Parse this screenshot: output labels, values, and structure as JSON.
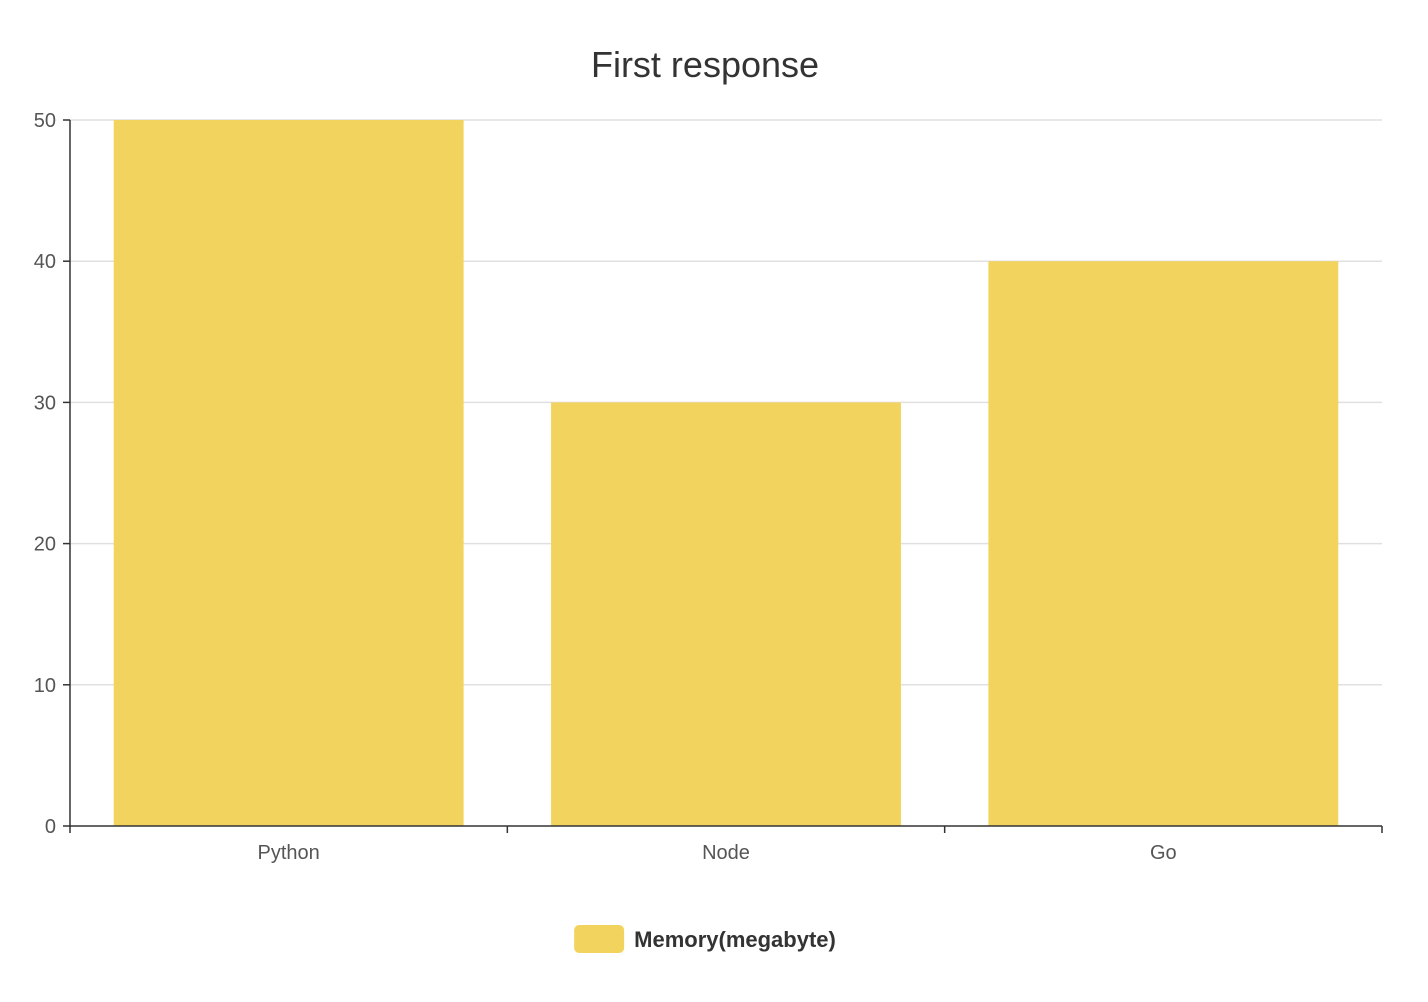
{
  "chart_data": {
    "type": "bar",
    "title": "First response",
    "categories": [
      "Python",
      "Node",
      "Go"
    ],
    "series": [
      {
        "name": "Memory(megabyte)",
        "values": [
          50,
          30,
          40
        ],
        "color": "#f2d35e"
      }
    ],
    "ylim": [
      0,
      50
    ],
    "yticks": [
      0,
      10,
      20,
      30,
      40,
      50
    ],
    "grid": true,
    "legend_position": "bottom-center"
  }
}
